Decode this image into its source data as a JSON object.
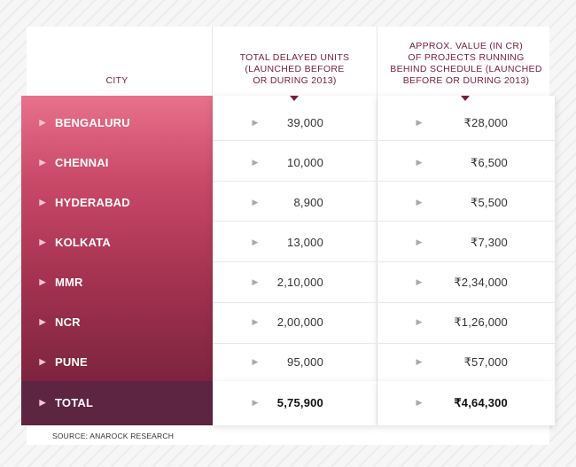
{
  "headers": {
    "city": "CITY",
    "units": "TOTAL DELAYED UNITS\n(LAUNCHED BEFORE\nOR DURING 2013)",
    "value": "APPROX. VALUE (IN CR)\nOF PROJECTS RUNNING\nBEHIND SCHEDULE (LAUNCHED\nBEFORE OR DURING 2013)"
  },
  "rows": [
    {
      "city": "BENGALURU",
      "units": "39,000",
      "value": "₹28,000"
    },
    {
      "city": "CHENNAI",
      "units": "10,000",
      "value": "₹6,500"
    },
    {
      "city": "HYDERABAD",
      "units": "8,900",
      "value": "₹5,500"
    },
    {
      "city": "KOLKATA",
      "units": "13,000",
      "value": "₹7,300"
    },
    {
      "city": "MMR",
      "units": "2,10,000",
      "value": "₹2,34,000"
    },
    {
      "city": "NCR",
      "units": "2,00,000",
      "value": "₹1,26,000"
    },
    {
      "city": "PUNE",
      "units": "95,000",
      "value": "₹57,000"
    }
  ],
  "total": {
    "city": "TOTAL",
    "units": "5,75,900",
    "value": "₹4,64,300"
  },
  "source": "SOURCE: ANAROCK RESEARCH",
  "colors": {
    "header_text": "#7a1d3a",
    "city_gradient_top": "#e8718b",
    "city_gradient_bottom": "#7d2440",
    "total_bg": "#5e2543"
  },
  "icons": {
    "row_marker": "triangle-right-icon",
    "header_marker": "triangle-down-icon"
  }
}
